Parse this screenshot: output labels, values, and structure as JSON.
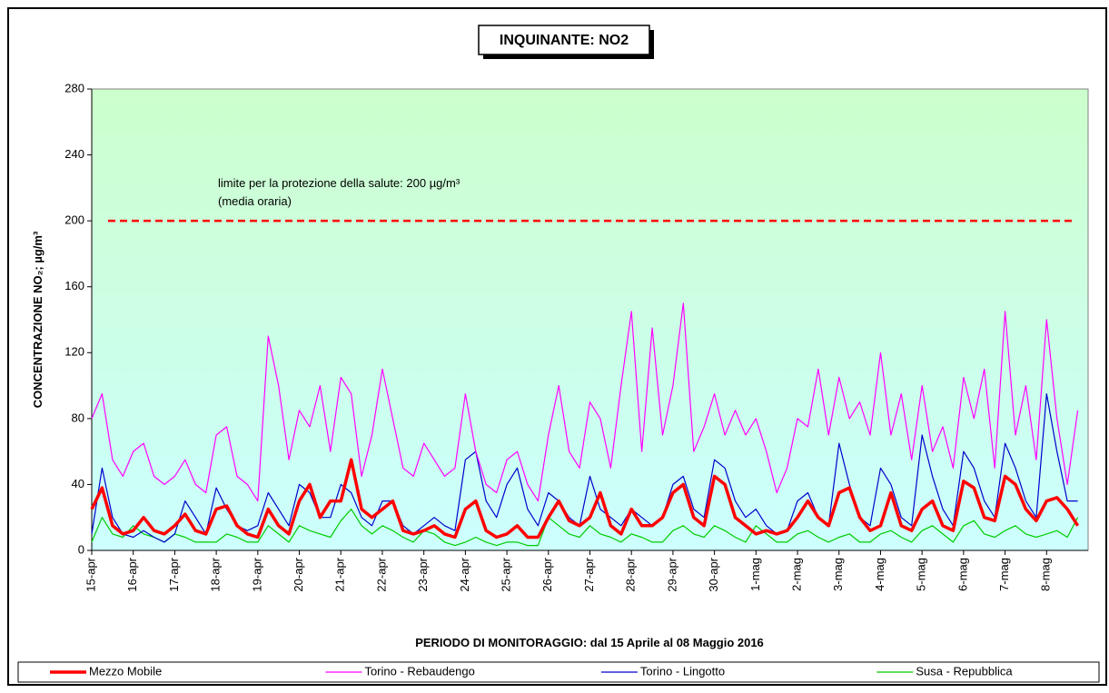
{
  "chart_data": {
    "type": "line",
    "title": "INQUINANTE: NO2",
    "ylabel": "CONCENTRAZIONE NO₂; µg/m³",
    "xlabel": "PERIODO DI MONITORAGGIO: dal 15 Aprile al 08 Maggio 2016",
    "limit": 200,
    "limit_annotation": [
      "limite per la protezione della salute: 200  µg/m³",
      "(media oraria)"
    ],
    "limit_color": "#ff0000",
    "ylim": [
      0,
      280
    ],
    "yticks": [
      0,
      40,
      80,
      120,
      160,
      200,
      240,
      280
    ],
    "xlim": [
      0,
      24
    ],
    "xticks": [
      {
        "value": 0,
        "label": "15-apr"
      },
      {
        "value": 1,
        "label": "16-apr"
      },
      {
        "value": 2,
        "label": "17-apr"
      },
      {
        "value": 3,
        "label": "18-apr"
      },
      {
        "value": 4,
        "label": "19-apr"
      },
      {
        "value": 5,
        "label": "20-apr"
      },
      {
        "value": 6,
        "label": "21-apr"
      },
      {
        "value": 7,
        "label": "22-apr"
      },
      {
        "value": 8,
        "label": "23-apr"
      },
      {
        "value": 9,
        "label": "24-apr"
      },
      {
        "value": 10,
        "label": "25-apr"
      },
      {
        "value": 11,
        "label": "26-apr"
      },
      {
        "value": 12,
        "label": "27-apr"
      },
      {
        "value": 13,
        "label": "28-apr"
      },
      {
        "value": 14,
        "label": "29-apr"
      },
      {
        "value": 15,
        "label": "30-apr"
      },
      {
        "value": 16,
        "label": "1-mag"
      },
      {
        "value": 17,
        "label": "2-mag"
      },
      {
        "value": 18,
        "label": "3-mag"
      },
      {
        "value": 19,
        "label": "4-mag"
      },
      {
        "value": 20,
        "label": "5-mag"
      },
      {
        "value": 21,
        "label": "6-mag"
      },
      {
        "value": 22,
        "label": "7-mag"
      },
      {
        "value": 23,
        "label": "8-mag"
      }
    ],
    "legend": "bottom",
    "x": [
      0,
      0.25,
      0.5,
      0.75,
      1,
      1.25,
      1.5,
      1.75,
      2,
      2.25,
      2.5,
      2.75,
      3,
      3.25,
      3.5,
      3.75,
      4,
      4.25,
      4.5,
      4.75,
      5,
      5.25,
      5.5,
      5.75,
      6,
      6.25,
      6.5,
      6.75,
      7,
      7.25,
      7.5,
      7.75,
      8,
      8.25,
      8.5,
      8.75,
      9,
      9.25,
      9.5,
      9.75,
      10,
      10.25,
      10.5,
      10.75,
      11,
      11.25,
      11.5,
      11.75,
      12,
      12.25,
      12.5,
      12.75,
      13,
      13.25,
      13.5,
      13.75,
      14,
      14.25,
      14.5,
      14.75,
      15,
      15.25,
      15.5,
      15.75,
      16,
      16.25,
      16.5,
      16.75,
      17,
      17.25,
      17.5,
      17.75,
      18,
      18.25,
      18.5,
      18.75,
      19,
      19.25,
      19.5,
      19.75,
      20,
      20.25,
      20.5,
      20.75,
      21,
      21.25,
      21.5,
      21.75,
      22,
      22.25,
      22.5,
      22.75,
      23,
      23.25,
      23.5,
      23.75
    ],
    "series": [
      {
        "name": "Mezzo Mobile",
        "color": "#ff0000",
        "width": 3.5,
        "values": [
          25,
          38,
          15,
          10,
          12,
          20,
          12,
          10,
          15,
          22,
          12,
          10,
          25,
          27,
          15,
          10,
          8,
          25,
          15,
          10,
          30,
          40,
          20,
          30,
          30,
          55,
          25,
          20,
          25,
          30,
          12,
          10,
          12,
          15,
          10,
          8,
          25,
          30,
          12,
          8,
          10,
          15,
          8,
          8,
          20,
          30,
          18,
          15,
          20,
          35,
          15,
          10,
          25,
          15,
          15,
          20,
          35,
          40,
          20,
          15,
          45,
          40,
          20,
          15,
          10,
          12,
          10,
          12,
          20,
          30,
          20,
          15,
          35,
          38,
          20,
          12,
          15,
          35,
          15,
          12,
          25,
          30,
          15,
          12,
          42,
          38,
          20,
          18,
          45,
          40,
          25,
          18,
          30,
          32,
          25,
          15
        ]
      },
      {
        "name": "Torino - Rebaudengo",
        "color": "#ff00ff",
        "width": 1.2,
        "values": [
          80,
          95,
          55,
          45,
          60,
          65,
          45,
          40,
          45,
          55,
          40,
          35,
          70,
          75,
          45,
          40,
          30,
          130,
          100,
          55,
          85,
          75,
          100,
          60,
          105,
          95,
          45,
          70,
          110,
          80,
          50,
          45,
          65,
          55,
          45,
          50,
          95,
          60,
          40,
          35,
          55,
          60,
          40,
          30,
          70,
          100,
          60,
          50,
          90,
          80,
          50,
          100,
          145,
          60,
          135,
          70,
          100,
          150,
          60,
          75,
          95,
          70,
          85,
          70,
          80,
          60,
          35,
          50,
          80,
          75,
          110,
          70,
          105,
          80,
          90,
          70,
          120,
          70,
          95,
          55,
          100,
          60,
          75,
          50,
          105,
          80,
          110,
          50,
          145,
          70,
          100,
          55,
          140,
          80,
          40,
          85
        ]
      },
      {
        "name": "Torino - Lingotto",
        "color": "#0000cc",
        "width": 1.2,
        "values": [
          10,
          50,
          20,
          10,
          8,
          12,
          8,
          5,
          10,
          30,
          20,
          10,
          38,
          25,
          15,
          12,
          15,
          35,
          25,
          15,
          40,
          35,
          20,
          20,
          40,
          35,
          20,
          15,
          30,
          30,
          15,
          10,
          15,
          20,
          15,
          12,
          55,
          60,
          30,
          20,
          40,
          50,
          25,
          15,
          35,
          30,
          20,
          15,
          45,
          25,
          20,
          15,
          25,
          20,
          15,
          20,
          40,
          45,
          25,
          20,
          55,
          50,
          30,
          20,
          25,
          15,
          10,
          12,
          30,
          35,
          20,
          15,
          65,
          40,
          20,
          15,
          50,
          40,
          20,
          15,
          70,
          45,
          25,
          15,
          60,
          50,
          30,
          20,
          65,
          50,
          30,
          20,
          95,
          60,
          30,
          30
        ]
      },
      {
        "name": "Susa - Repubblica",
        "color": "#00cc00",
        "width": 1.2,
        "values": [
          5,
          20,
          10,
          8,
          15,
          10,
          8,
          5,
          10,
          8,
          5,
          5,
          5,
          10,
          8,
          5,
          5,
          15,
          10,
          5,
          15,
          12,
          10,
          8,
          18,
          25,
          15,
          10,
          15,
          12,
          8,
          5,
          12,
          10,
          5,
          3,
          5,
          8,
          5,
          3,
          5,
          5,
          3,
          3,
          20,
          15,
          10,
          8,
          15,
          10,
          8,
          5,
          10,
          8,
          5,
          5,
          12,
          15,
          10,
          8,
          15,
          12,
          8,
          5,
          15,
          10,
          5,
          5,
          10,
          12,
          8,
          5,
          8,
          10,
          5,
          5,
          10,
          12,
          8,
          5,
          12,
          15,
          10,
          5,
          15,
          18,
          10,
          8,
          12,
          15,
          10,
          8,
          10,
          12,
          8,
          20
        ]
      }
    ]
  }
}
